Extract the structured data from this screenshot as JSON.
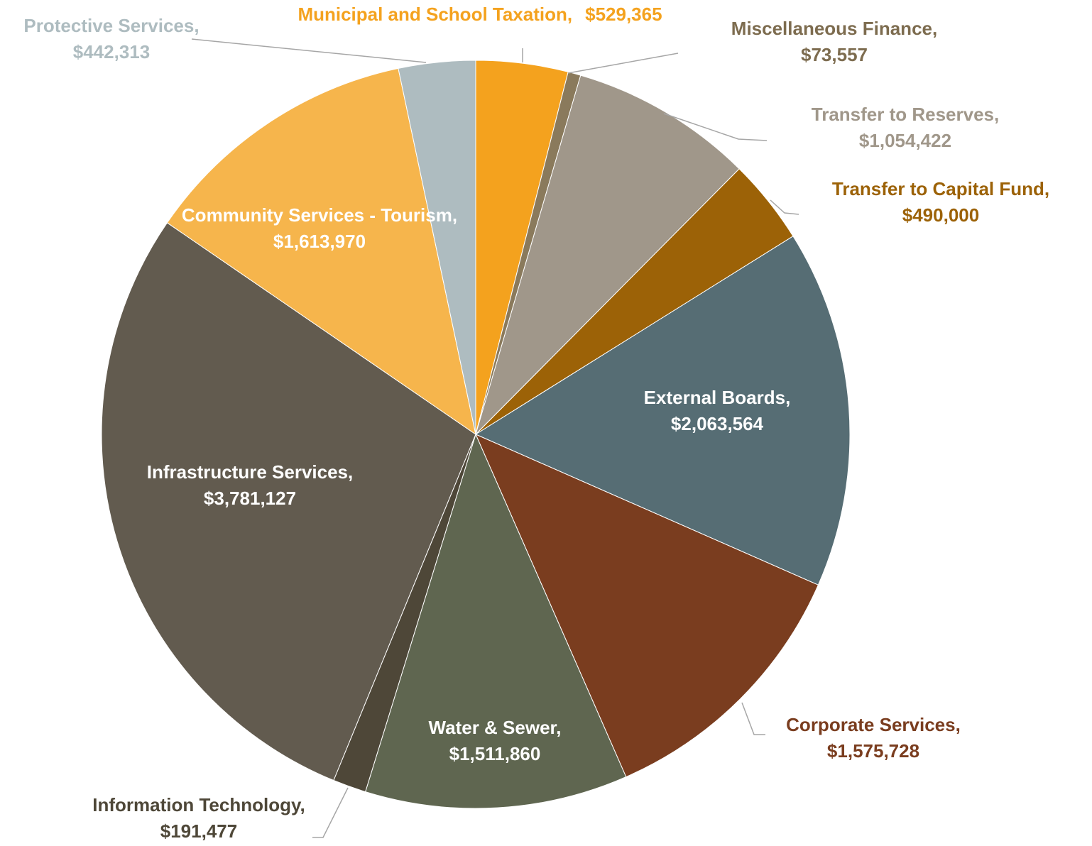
{
  "chart_data": {
    "type": "pie",
    "categories": [
      "Municipal and School Taxation,",
      "Miscellaneous Finance,",
      "Transfer to Reserves,",
      "Transfer to Capital Fund,",
      "External Boards,",
      "Corporate Services,",
      "Water & Sewer,",
      "Information Technology,",
      "Infrastructure Services,",
      "Community Services - Tourism,",
      "Protective Services,"
    ],
    "values": [
      529365,
      73557,
      1054422,
      490000,
      2063564,
      1575728,
      1511860,
      191477,
      3781127,
      1613970,
      442313
    ],
    "value_labels": [
      "$529,365",
      "$73,557",
      "$1,054,422",
      "$490,000",
      "$2,063,564",
      "$1,575,728",
      "$1,511,860",
      "$191,477",
      "$3,781,127",
      "$1,613,970",
      "$442,313"
    ],
    "colors": [
      "#F4A21E",
      "#8A7A5C",
      "#A0978A",
      "#9C6207",
      "#566D74",
      "#7A3D1F",
      "#5F6650",
      "#4E4738",
      "#625B4F",
      "#F6B54C",
      "#AEBCC0"
    ],
    "label_colors": [
      "#F4A21E",
      "#7D6C4F",
      "#A0978A",
      "#9C6207",
      "#FFFFFF",
      "#7A3D1F",
      "#FFFFFF",
      "#4E4738",
      "#FFFFFF",
      "#FFFFFF",
      "#AEBCC0"
    ]
  }
}
